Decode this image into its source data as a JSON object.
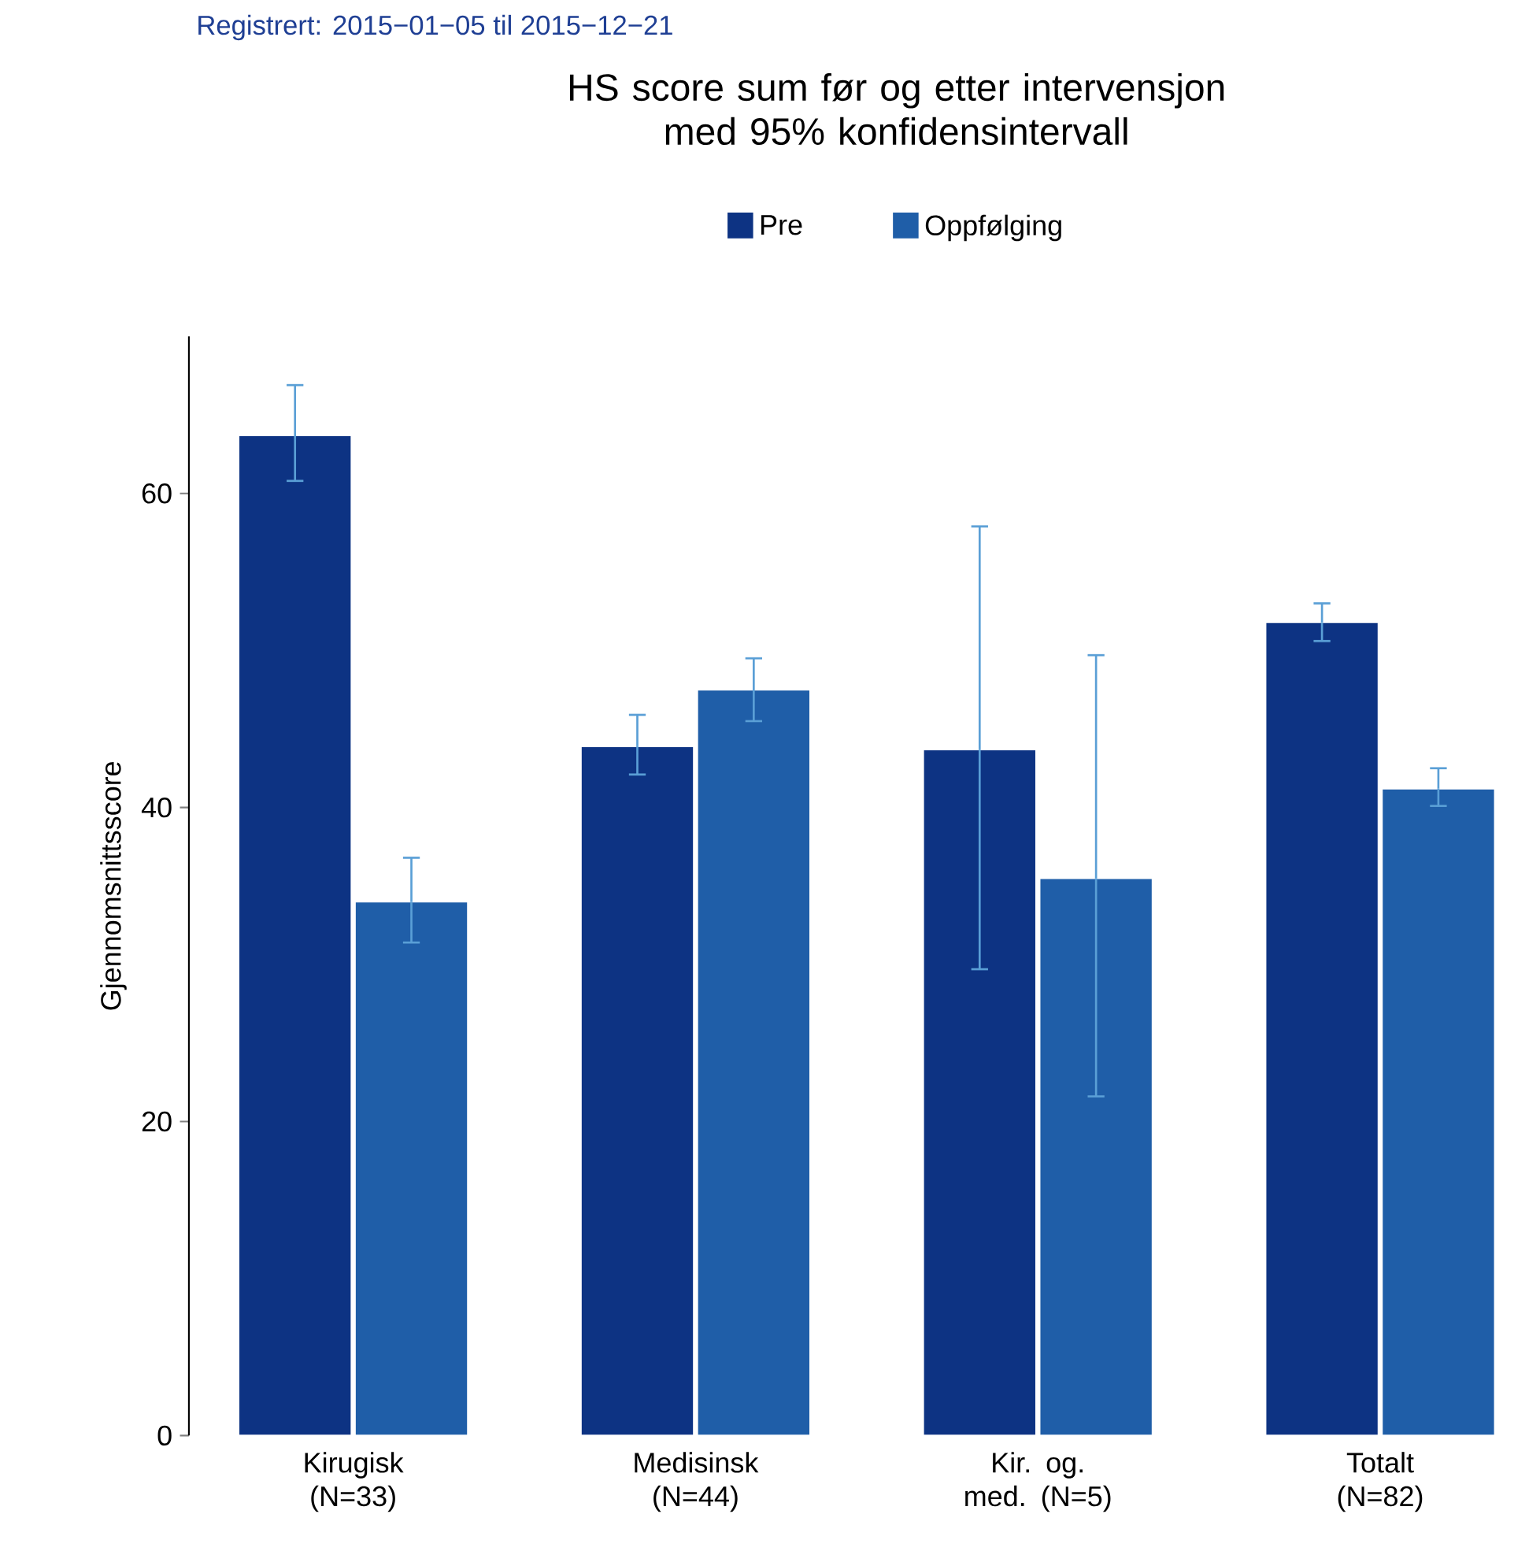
{
  "chart_data": {
    "type": "bar",
    "title": "HS score sum før og etter intervensjon med 95% konfidensintervall",
    "subtitle": "Registrert: 2015−01−05 til 2015−12−21",
    "ylabel": "Gjennomsnittsscore",
    "categories": [
      "Kirugisk (N=33)",
      "Medisinsk (N=44)",
      "Kir. og. med. (N=5)",
      "Totalt (N=82)"
    ],
    "series": [
      {
        "name": "Pre",
        "color": "#0d3383",
        "values": [
          63.7,
          43.9,
          43.7,
          51.8
        ],
        "errors": [
          [
            60.8,
            66.9
          ],
          [
            42.1,
            45.9
          ],
          [
            29.7,
            57.9
          ],
          [
            50.6,
            53.0
          ]
        ]
      },
      {
        "name": "Oppfølging",
        "color": "#1f5ea8",
        "values": [
          34.0,
          47.5,
          35.5,
          41.2
        ],
        "errors": [
          [
            31.4,
            36.8
          ],
          [
            45.5,
            49.5
          ],
          [
            21.6,
            49.7
          ],
          [
            40.1,
            42.5
          ]
        ]
      }
    ],
    "ylim": [
      0,
      70
    ],
    "yticks": [
      0,
      20,
      40,
      60
    ],
    "grid": false,
    "legend": "top"
  }
}
